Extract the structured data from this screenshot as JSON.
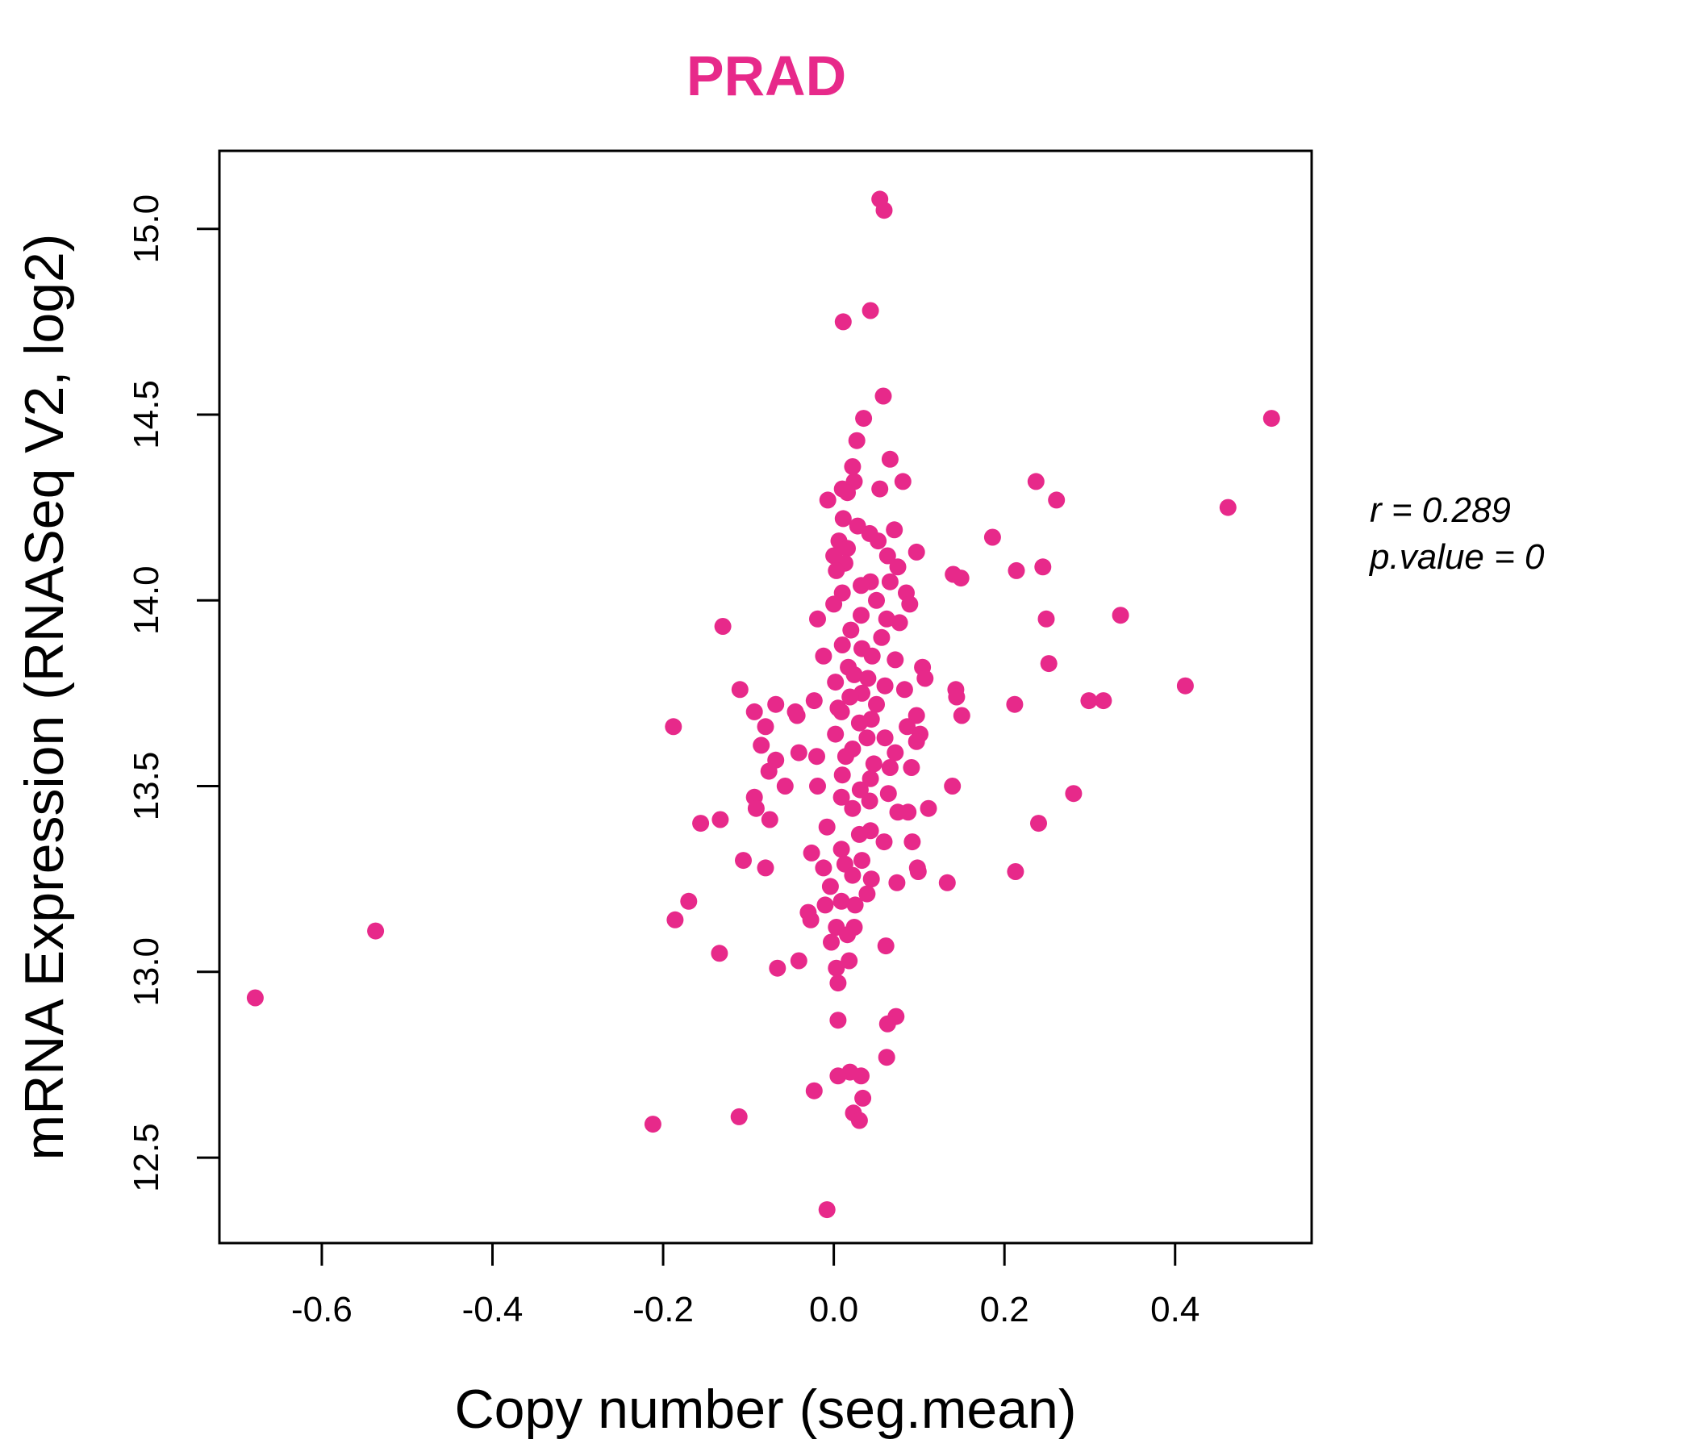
{
  "chart_data": {
    "type": "scatter",
    "title": "PRAD",
    "xlabel": "Copy number (seg.mean)",
    "ylabel": "mRNA Expression (RNASeq V2, log2)",
    "xlim": [
      -0.72,
      0.56
    ],
    "ylim": [
      12.27,
      15.21
    ],
    "xticks": [
      -0.6,
      -0.4,
      -0.2,
      0.0,
      0.2,
      0.4
    ],
    "xtick_labels": [
      "-0.6",
      "-0.4",
      "-0.2",
      "0.0",
      "0.2",
      "0.4"
    ],
    "yticks": [
      12.5,
      13.0,
      13.5,
      14.0,
      14.5,
      15.0
    ],
    "ytick_labels": [
      "12.5",
      "13.0",
      "13.5",
      "14.0",
      "14.5",
      "15.0"
    ],
    "point_color": "#E7298A",
    "stats": {
      "r_text": "r = 0.289",
      "p_text": "p.value = 0"
    },
    "points": [
      [
        0.054,
        15.08
      ],
      [
        0.059,
        15.05
      ],
      [
        0.043,
        14.78
      ],
      [
        0.011,
        14.75
      ],
      [
        0.058,
        14.55
      ],
      [
        0.035,
        14.49
      ],
      [
        0.513,
        14.49
      ],
      [
        0.027,
        14.43
      ],
      [
        0.066,
        14.38
      ],
      [
        0.022,
        14.36
      ],
      [
        0.237,
        14.32
      ],
      [
        0.081,
        14.32
      ],
      [
        0.024,
        14.32
      ],
      [
        0.01,
        14.3
      ],
      [
        0.054,
        14.3
      ],
      [
        0.016,
        14.29
      ],
      [
        0.261,
        14.27
      ],
      [
        -0.007,
        14.27
      ],
      [
        0.462,
        14.25
      ],
      [
        0.011,
        14.22
      ],
      [
        0.028,
        14.2
      ],
      [
        0.042,
        14.18
      ],
      [
        0.071,
        14.19
      ],
      [
        0.186,
        14.17
      ],
      [
        0.052,
        14.16
      ],
      [
        0.006,
        14.16
      ],
      [
        0.016,
        14.14
      ],
      [
        0.097,
        14.13
      ],
      [
        0.063,
        14.12
      ],
      [
        0.0,
        14.12
      ],
      [
        0.013,
        14.1
      ],
      [
        0.245,
        14.09
      ],
      [
        0.214,
        14.08
      ],
      [
        0.075,
        14.09
      ],
      [
        0.14,
        14.07
      ],
      [
        0.149,
        14.06
      ],
      [
        0.003,
        14.08
      ],
      [
        0.043,
        14.05
      ],
      [
        0.066,
        14.05
      ],
      [
        0.032,
        14.04
      ],
      [
        0.085,
        14.02
      ],
      [
        0.05,
        14.0
      ],
      [
        0.01,
        14.02
      ],
      [
        0.089,
        13.99
      ],
      [
        0.0,
        13.99
      ],
      [
        0.249,
        13.95
      ],
      [
        0.336,
        13.96
      ],
      [
        0.032,
        13.96
      ],
      [
        0.062,
        13.95
      ],
      [
        -0.019,
        13.95
      ],
      [
        0.077,
        13.94
      ],
      [
        -0.13,
        13.93
      ],
      [
        0.02,
        13.92
      ],
      [
        0.056,
        13.9
      ],
      [
        0.01,
        13.88
      ],
      [
        0.033,
        13.87
      ],
      [
        0.045,
        13.85
      ],
      [
        -0.012,
        13.85
      ],
      [
        0.072,
        13.84
      ],
      [
        0.252,
        13.83
      ],
      [
        0.104,
        13.82
      ],
      [
        0.017,
        13.82
      ],
      [
        0.024,
        13.8
      ],
      [
        0.04,
        13.79
      ],
      [
        0.107,
        13.79
      ],
      [
        0.002,
        13.78
      ],
      [
        0.06,
        13.77
      ],
      [
        0.412,
        13.77
      ],
      [
        0.143,
        13.76
      ],
      [
        0.083,
        13.76
      ],
      [
        -0.11,
        13.76
      ],
      [
        0.033,
        13.75
      ],
      [
        0.144,
        13.74
      ],
      [
        0.019,
        13.74
      ],
      [
        0.299,
        13.73
      ],
      [
        0.316,
        13.73
      ],
      [
        -0.023,
        13.73
      ],
      [
        0.212,
        13.72
      ],
      [
        -0.068,
        13.72
      ],
      [
        0.05,
        13.72
      ],
      [
        0.005,
        13.71
      ],
      [
        -0.093,
        13.7
      ],
      [
        -0.045,
        13.7
      ],
      [
        0.009,
        13.7
      ],
      [
        0.097,
        13.69
      ],
      [
        0.15,
        13.69
      ],
      [
        0.044,
        13.68
      ],
      [
        -0.043,
        13.69
      ],
      [
        0.03,
        13.67
      ],
      [
        -0.08,
        13.66
      ],
      [
        -0.188,
        13.66
      ],
      [
        0.086,
        13.66
      ],
      [
        0.101,
        13.64
      ],
      [
        0.002,
        13.64
      ],
      [
        0.039,
        13.63
      ],
      [
        0.06,
        13.63
      ],
      [
        0.097,
        13.62
      ],
      [
        -0.085,
        13.61
      ],
      [
        0.022,
        13.6
      ],
      [
        0.072,
        13.59
      ],
      [
        -0.041,
        13.59
      ],
      [
        0.014,
        13.58
      ],
      [
        -0.02,
        13.58
      ],
      [
        -0.068,
        13.57
      ],
      [
        0.047,
        13.56
      ],
      [
        0.066,
        13.55
      ],
      [
        0.091,
        13.55
      ],
      [
        -0.076,
        13.54
      ],
      [
        0.01,
        13.53
      ],
      [
        0.043,
        13.52
      ],
      [
        0.139,
        13.5
      ],
      [
        -0.057,
        13.5
      ],
      [
        -0.019,
        13.5
      ],
      [
        0.031,
        13.49
      ],
      [
        0.064,
        13.48
      ],
      [
        0.281,
        13.48
      ],
      [
        -0.093,
        13.47
      ],
      [
        0.009,
        13.47
      ],
      [
        0.042,
        13.46
      ],
      [
        0.111,
        13.44
      ],
      [
        -0.091,
        13.44
      ],
      [
        0.022,
        13.44
      ],
      [
        0.075,
        13.43
      ],
      [
        0.087,
        13.43
      ],
      [
        -0.133,
        13.41
      ],
      [
        -0.075,
        13.41
      ],
      [
        0.24,
        13.4
      ],
      [
        -0.156,
        13.4
      ],
      [
        -0.008,
        13.39
      ],
      [
        0.043,
        13.38
      ],
      [
        0.03,
        13.37
      ],
      [
        0.092,
        13.35
      ],
      [
        0.059,
        13.35
      ],
      [
        0.009,
        13.33
      ],
      [
        -0.026,
        13.32
      ],
      [
        0.033,
        13.3
      ],
      [
        -0.106,
        13.3
      ],
      [
        0.013,
        13.29
      ],
      [
        0.098,
        13.28
      ],
      [
        -0.08,
        13.28
      ],
      [
        -0.012,
        13.28
      ],
      [
        0.213,
        13.27
      ],
      [
        0.099,
        13.27
      ],
      [
        0.022,
        13.26
      ],
      [
        0.044,
        13.25
      ],
      [
        0.133,
        13.24
      ],
      [
        0.074,
        13.24
      ],
      [
        -0.004,
        13.23
      ],
      [
        0.039,
        13.21
      ],
      [
        0.009,
        13.19
      ],
      [
        -0.17,
        13.19
      ],
      [
        0.025,
        13.18
      ],
      [
        -0.01,
        13.18
      ],
      [
        -0.03,
        13.16
      ],
      [
        -0.027,
        13.14
      ],
      [
        -0.186,
        13.14
      ],
      [
        0.024,
        13.12
      ],
      [
        0.003,
        13.12
      ],
      [
        0.016,
        13.1
      ],
      [
        -0.003,
        13.08
      ],
      [
        0.061,
        13.07
      ],
      [
        -0.134,
        13.05
      ],
      [
        0.018,
        13.03
      ],
      [
        -0.041,
        13.03
      ],
      [
        0.003,
        13.01
      ],
      [
        -0.066,
        13.01
      ],
      [
        0.005,
        12.97
      ],
      [
        -0.678,
        12.93
      ],
      [
        -0.537,
        13.11
      ],
      [
        0.073,
        12.88
      ],
      [
        0.005,
        12.87
      ],
      [
        0.063,
        12.86
      ],
      [
        0.062,
        12.77
      ],
      [
        0.019,
        12.73
      ],
      [
        0.032,
        12.72
      ],
      [
        0.005,
        12.72
      ],
      [
        -0.023,
        12.68
      ],
      [
        0.034,
        12.66
      ],
      [
        0.023,
        12.62
      ],
      [
        0.03,
        12.6
      ],
      [
        -0.111,
        12.61
      ],
      [
        -0.212,
        12.59
      ],
      [
        -0.008,
        12.36
      ]
    ]
  }
}
